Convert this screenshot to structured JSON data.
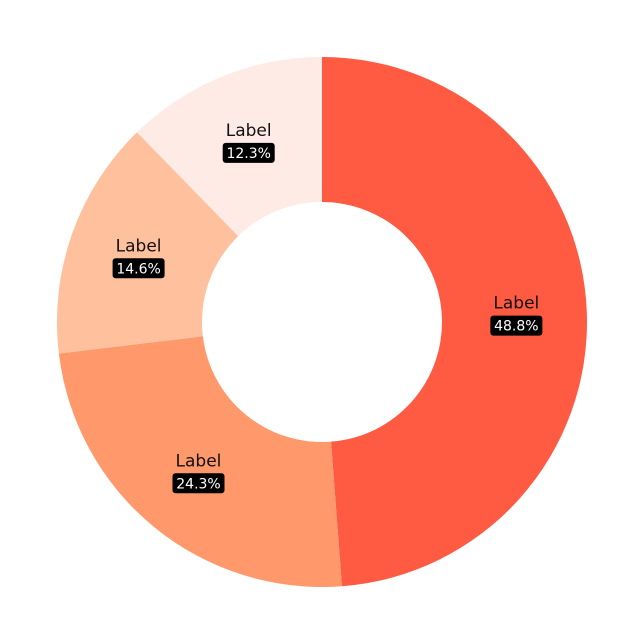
{
  "chart_data": {
    "type": "pie",
    "variant": "donut",
    "title": "",
    "slices": [
      {
        "label": "Label",
        "value": 48.8,
        "display": "48.8%",
        "color": "#ff5a42"
      },
      {
        "label": "Label",
        "value": 24.3,
        "display": "24.3%",
        "color": "#ff986b"
      },
      {
        "label": "Label",
        "value": 14.6,
        "display": "14.6%",
        "color": "#ffc09d"
      },
      {
        "label": "Label",
        "value": 12.3,
        "display": "12.3%",
        "color": "#ffebe6"
      }
    ],
    "legend": "none",
    "start_direction": "top",
    "order": "clockwise"
  }
}
